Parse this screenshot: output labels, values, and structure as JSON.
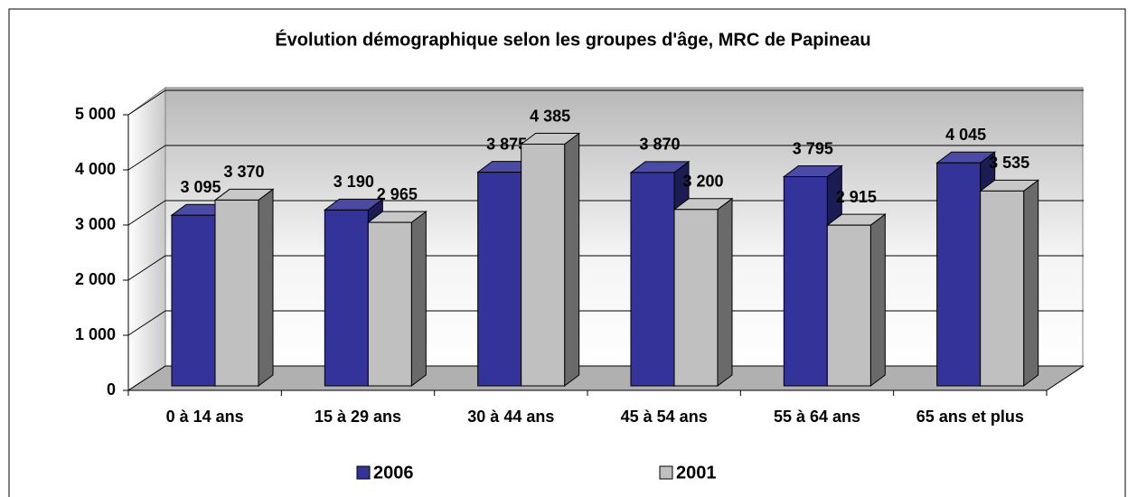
{
  "chart_data": {
    "type": "bar3d",
    "title": "Évolution démographique selon les groupes d'âge, MRC de Papineau",
    "categories": [
      "0 à 14 ans",
      "15 à 29 ans",
      "30 à 44 ans",
      "45 à 54 ans",
      "55 à 64 ans",
      "65 ans et plus"
    ],
    "series": [
      {
        "name": "2006",
        "color": "#333399",
        "values": [
          3095,
          3190,
          3875,
          3870,
          3795,
          4045
        ],
        "value_labels": [
          "3 095",
          "3 190",
          "3 875",
          "3 870",
          "3 795",
          "4 045"
        ]
      },
      {
        "name": "2001",
        "color": "#c0c0c0",
        "values": [
          3370,
          2965,
          4385,
          3200,
          2915,
          3535
        ],
        "value_labels": [
          "3 370",
          "2 965",
          "4 385",
          "3 200",
          "2 915",
          "3 535"
        ]
      }
    ],
    "ylim": [
      0,
      5000
    ],
    "yticks": [
      0,
      {
        "value": 1000,
        "label": "1 000"
      },
      {
        "value": 2000,
        "label": "2 000"
      },
      {
        "value": 3000,
        "label": "3 000"
      },
      {
        "value": 4000,
        "label": "4 000"
      },
      {
        "value": 5000,
        "label": "5 000"
      }
    ],
    "grid": true,
    "legend": "bottom"
  }
}
